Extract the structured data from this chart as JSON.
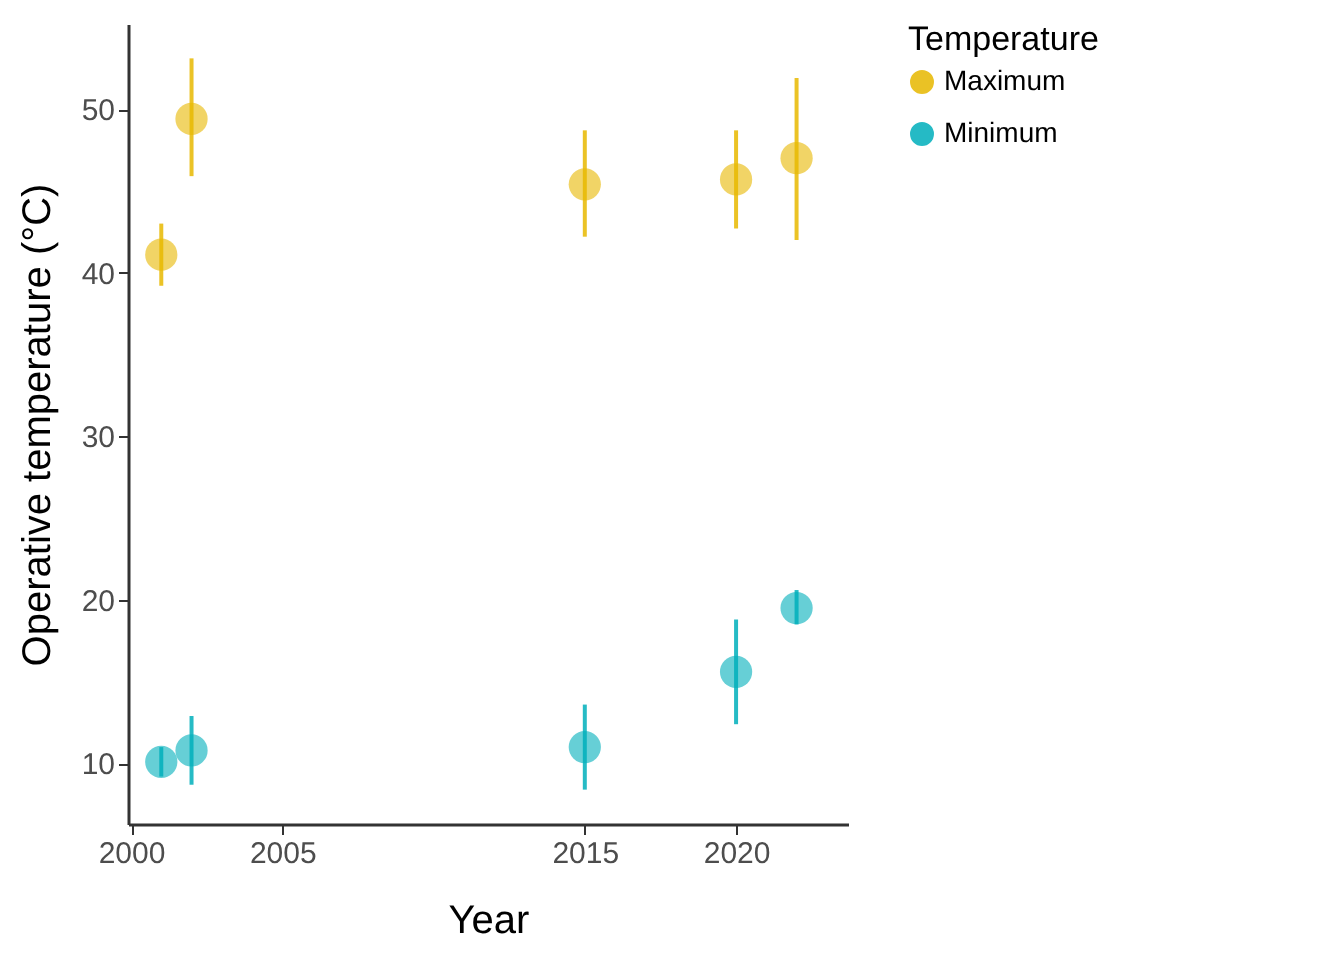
{
  "chart_data": {
    "type": "scatter",
    "xlabel": "Year",
    "ylabel": "Operative temperature (°C)",
    "legend_title": "Temperature",
    "legend": "right",
    "marker": "circle",
    "grid": false,
    "x": [
      2001,
      2002,
      2015,
      2020,
      2022
    ],
    "series": [
      {
        "name": "Maximum",
        "color": "#e7b800",
        "values": [
          41.1,
          49.4,
          45.4,
          45.7,
          47.0
        ],
        "errors": [
          [
            39.2,
            43.0
          ],
          [
            45.9,
            53.1
          ],
          [
            42.2,
            48.7
          ],
          [
            42.7,
            48.7
          ],
          [
            42.0,
            51.9
          ]
        ]
      },
      {
        "name": "Minimum",
        "color": "#00afbb",
        "values": [
          10.1,
          10.8,
          11.0,
          15.6,
          19.5
        ],
        "errors": [
          [
            9.2,
            11.0
          ],
          [
            8.7,
            12.9
          ],
          [
            8.4,
            13.6
          ],
          [
            12.4,
            18.8
          ],
          [
            18.5,
            20.6
          ]
        ]
      }
    ],
    "xlim": [
      1999.9,
      2023.7
    ],
    "xticks": [
      2000,
      2005,
      2015,
      2020
    ],
    "ylim": [
      6.3,
      55.2
    ],
    "yticks": [
      10,
      20,
      30,
      40,
      50
    ]
  }
}
